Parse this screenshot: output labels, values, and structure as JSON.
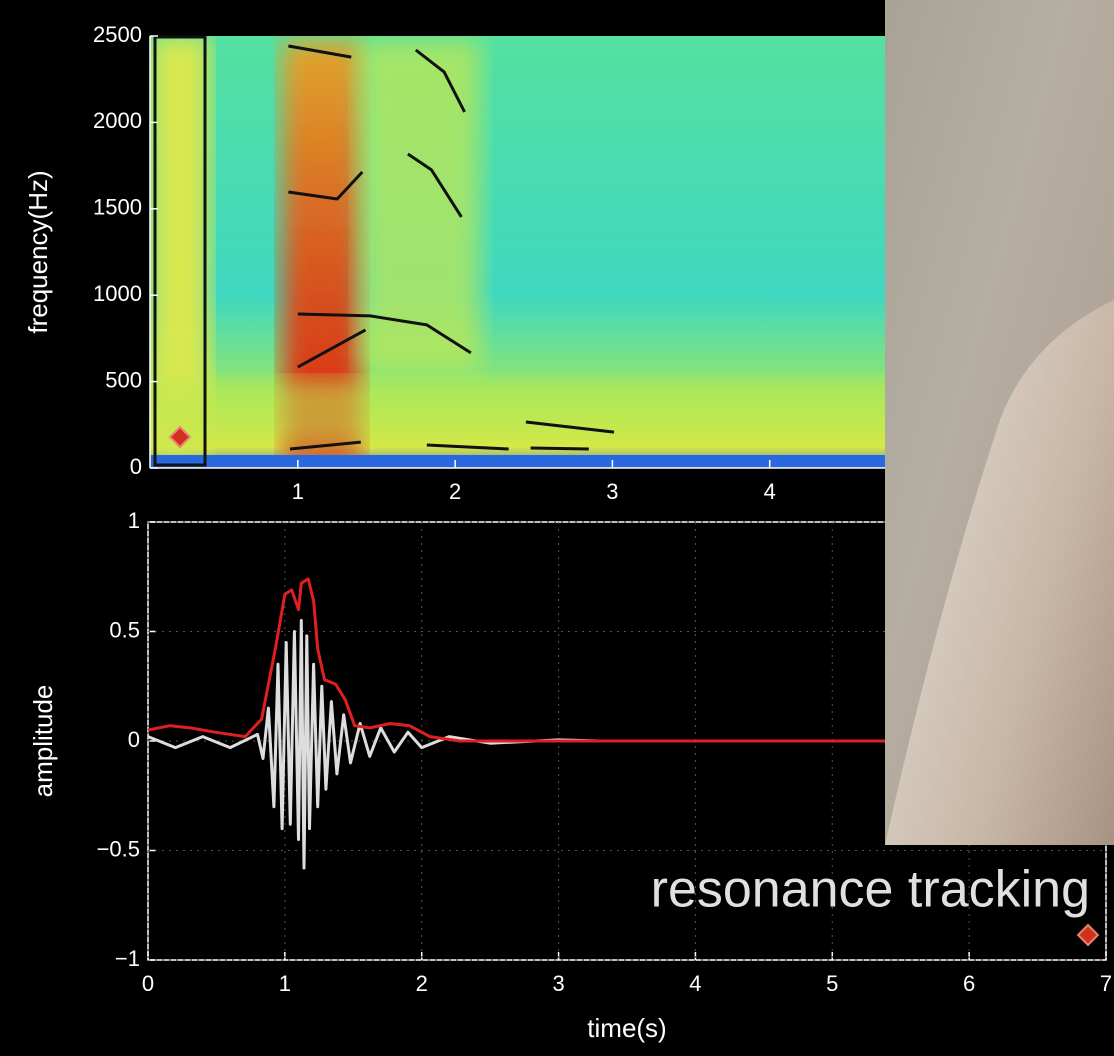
{
  "chart_data": [
    {
      "type": "spectrogram",
      "ylabel": "frequency(Hz)",
      "xlim": [
        0.06,
        6.1
      ],
      "ylim": [
        0,
        2500
      ],
      "xticks": [
        1,
        2,
        3,
        4
      ],
      "yticks": [
        0,
        500,
        1000,
        1500,
        2000,
        2500
      ],
      "series": [
        {
          "color": "#111111",
          "x": [
            0.94,
            1.34
          ],
          "values": [
            2442,
            2378
          ]
        },
        {
          "color": "#111111",
          "x": [
            1.75,
            1.93,
            2.06
          ],
          "values": [
            2419,
            2292,
            2060
          ]
        },
        {
          "color": "#111111",
          "x": [
            0.94,
            1.25,
            1.41
          ],
          "values": [
            1597,
            1557,
            1713
          ]
        },
        {
          "color": "#111111",
          "x": [
            1.7,
            1.85,
            2.04
          ],
          "values": [
            1817,
            1725,
            1453
          ]
        },
        {
          "color": "#111111",
          "x": [
            1.0,
            1.46,
            1.82,
            2.1
          ],
          "values": [
            891,
            880,
            828,
            666
          ]
        },
        {
          "color": "#111111",
          "x": [
            1.0,
            1.43
          ],
          "values": [
            584,
            799
          ]
        },
        {
          "color": "#111111",
          "x": [
            0.95,
            1.4
          ],
          "values": [
            110,
            150
          ]
        },
        {
          "color": "#111111",
          "x": [
            1.82,
            2.34
          ],
          "values": [
            133,
            110
          ]
        },
        {
          "color": "#111111",
          "x": [
            2.48,
            2.85
          ],
          "values": [
            116,
            110
          ]
        },
        {
          "color": "#111111",
          "x": [
            2.45,
            3.01
          ],
          "values": [
            266,
            208
          ]
        }
      ]
    },
    {
      "type": "line",
      "xlabel": "time(s)",
      "ylabel": "amplitude",
      "grid": true,
      "xlim": [
        0,
        7
      ],
      "ylim": [
        -1,
        1
      ],
      "xticks": [
        0,
        1,
        2,
        3,
        4,
        5,
        6,
        7
      ],
      "yticks": [
        {
          "value": -1,
          "label": "−1"
        },
        {
          "value": -0.5,
          "label": "−0.5"
        },
        0,
        0.5,
        1
      ],
      "series": [
        {
          "color": "#dddddd",
          "x": [
            0,
            0.2,
            0.4,
            0.6,
            0.8,
            0.84,
            0.88,
            0.92,
            0.95,
            0.98,
            1.01,
            1.04,
            1.07,
            1.1,
            1.12,
            1.14,
            1.16,
            1.18,
            1.21,
            1.24,
            1.27,
            1.3,
            1.34,
            1.38,
            1.43,
            1.48,
            1.55,
            1.62,
            1.7,
            1.8,
            1.9,
            2.0,
            2.2,
            2.5,
            3.0,
            3.3
          ],
          "values": [
            0.02,
            -0.03,
            0.02,
            -0.03,
            0.03,
            -0.08,
            0.15,
            -0.3,
            0.35,
            -0.4,
            0.45,
            -0.38,
            0.5,
            -0.45,
            0.55,
            -0.58,
            0.48,
            -0.4,
            0.35,
            -0.3,
            0.25,
            -0.22,
            0.18,
            -0.15,
            0.12,
            -0.1,
            0.08,
            -0.07,
            0.06,
            -0.05,
            0.04,
            -0.03,
            0.02,
            -0.01,
            0.005,
            0
          ]
        },
        {
          "color": "#e02020",
          "x": [
            0,
            0.16,
            0.31,
            0.49,
            0.71,
            0.83,
            0.93,
            1.0,
            1.05,
            1.1,
            1.12,
            1.17,
            1.21,
            1.24,
            1.29,
            1.37,
            1.44,
            1.51,
            1.62,
            1.77,
            1.91,
            2.06,
            2.28,
            7.0
          ],
          "values": [
            0.05,
            0.07,
            0.06,
            0.04,
            0.02,
            0.1,
            0.42,
            0.67,
            0.69,
            0.6,
            0.72,
            0.74,
            0.64,
            0.42,
            0.28,
            0.26,
            0.19,
            0.07,
            0.06,
            0.08,
            0.07,
            0.02,
            0,
            0
          ]
        }
      ]
    }
  ],
  "caption": "resonance tracking"
}
